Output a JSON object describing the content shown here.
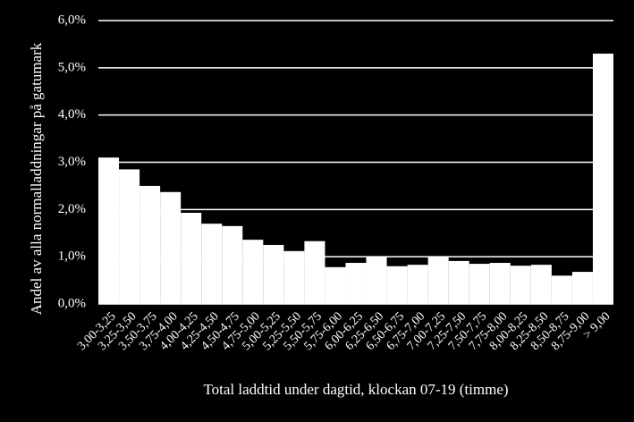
{
  "chart_data": {
    "type": "bar",
    "y_label": "Andel  av alla normalladdningar på gatumark",
    "x_label": "Total laddtid under dagtid, klockan 07-19 (timme)",
    "categories": [
      "3,00-3,25",
      "3,25-3,50",
      "3,50-3,75",
      "3,75-4,00",
      "4,00-4,25",
      "4,25-4,50",
      "4,50-4,75",
      "4,75-5,00",
      "5,00-5,25",
      "5,25-5,50",
      "5,50-5,75",
      "5,75-6,00",
      "6,00-6,25",
      "6,25-6,50",
      "6,50-6,75",
      "6,75-7,00",
      "7,00-7,25",
      "7,25-7,50",
      "7,50-7,75",
      "7,75-8,00",
      "8,00-8,25",
      "8,25-8,50",
      "8,50-8,75",
      "8,75-9,00",
      "> 9,00"
    ],
    "values": [
      3.1,
      2.85,
      2.5,
      2.37,
      1.93,
      1.7,
      1.65,
      1.36,
      1.25,
      1.12,
      1.33,
      0.78,
      0.87,
      1.0,
      0.8,
      0.83,
      1.0,
      0.91,
      0.85,
      0.87,
      0.81,
      0.83,
      0.6,
      0.68,
      5.3
    ],
    "color": "#ffffff",
    "ylim": [
      0,
      6
    ],
    "yticks": [
      {
        "value": 0,
        "label": "0,0%"
      },
      {
        "value": 1,
        "label": "1,0%"
      },
      {
        "value": 2,
        "label": "2,0%"
      },
      {
        "value": 3,
        "label": "3,0%"
      },
      {
        "value": 4,
        "label": "4,0%"
      },
      {
        "value": 5,
        "label": "5,0%"
      },
      {
        "value": 6,
        "label": "6,0%"
      }
    ],
    "grid": true
  }
}
